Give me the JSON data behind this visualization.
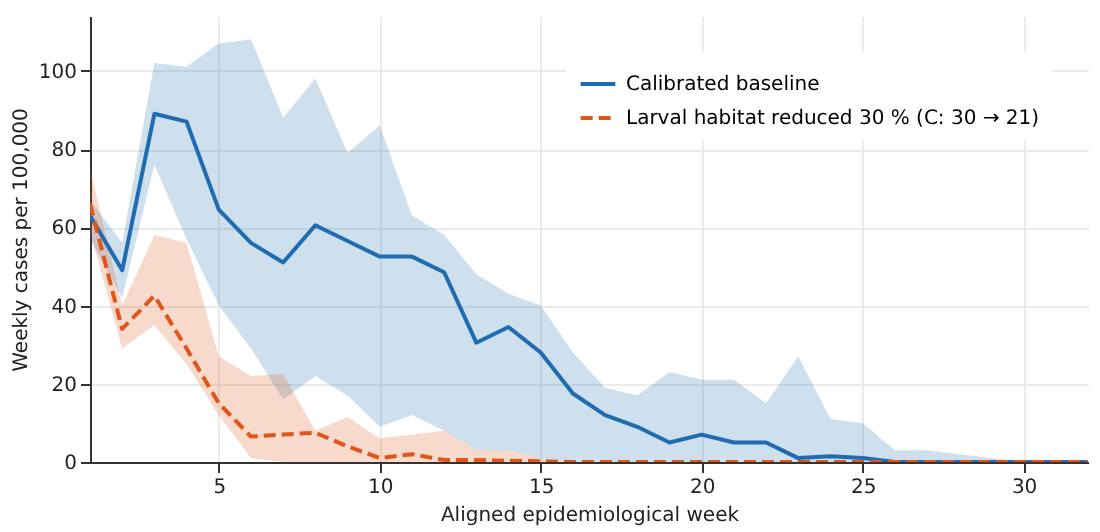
{
  "chart_data": {
    "type": "line",
    "xlabel": "Aligned epidemiological week",
    "ylabel": "Weekly cases per 100,000",
    "x": [
      1,
      2,
      3,
      4,
      5,
      6,
      7,
      8,
      9,
      10,
      11,
      12,
      13,
      14,
      15,
      16,
      17,
      18,
      19,
      20,
      21,
      22,
      23,
      24,
      25,
      26,
      27,
      28,
      29,
      30,
      31,
      32
    ],
    "series": [
      {
        "name": "Calibrated baseline",
        "color": "#1f6db0",
        "line_style": "solid",
        "values": [
          63,
          49,
          89,
          87,
          64.5,
          56,
          51,
          60.5,
          56.5,
          52.5,
          52.5,
          48.5,
          30.5,
          34.5,
          28,
          17.5,
          12,
          9,
          5,
          7,
          5,
          5,
          1,
          1.5,
          1,
          0,
          0,
          0,
          0,
          0,
          0,
          0
        ],
        "lower": [
          57,
          42,
          76,
          57,
          40,
          29,
          16,
          22,
          17,
          9,
          12,
          8,
          3,
          3,
          1,
          0,
          0,
          0,
          0,
          0,
          0,
          0,
          0,
          0,
          0,
          0,
          0,
          0,
          0,
          0,
          0,
          0
        ],
        "upper": [
          67,
          56,
          102,
          101,
          107,
          108,
          88,
          98,
          79,
          86,
          63,
          58,
          48,
          43,
          40,
          28,
          19,
          17,
          23,
          21,
          21,
          15,
          27,
          11,
          10,
          3,
          3,
          2,
          1,
          0,
          0,
          0
        ]
      },
      {
        "name": "Larval habitat reduced 30 % (C: 30 → 21)",
        "color": "#e0561a",
        "line_style": "dashed",
        "values": [
          66,
          34,
          42.5,
          29,
          15,
          6.5,
          7,
          7.5,
          4,
          1,
          2,
          0.5,
          0.5,
          0.3,
          0.2,
          0,
          0,
          0,
          0,
          0,
          0,
          0,
          0,
          0,
          0,
          0,
          0,
          0,
          0,
          0,
          0,
          0
        ],
        "lower": [
          59,
          29,
          35,
          25,
          12,
          1,
          0,
          0,
          0,
          0,
          0,
          0,
          0,
          0,
          0,
          0,
          0,
          0,
          0,
          0,
          0,
          0,
          0,
          0,
          0,
          0,
          0,
          0,
          0,
          0,
          0,
          0
        ],
        "upper": [
          75,
          40,
          58,
          56,
          27,
          22,
          22.5,
          8,
          11.5,
          6,
          7,
          8,
          3,
          3,
          1,
          0,
          0,
          0,
          0,
          0,
          0,
          0,
          0,
          0,
          0,
          0,
          0,
          0,
          0,
          0,
          0,
          0
        ]
      }
    ],
    "xlim": [
      1,
      32
    ],
    "xticks": [
      5,
      10,
      15,
      20,
      25,
      30
    ],
    "ylim": [
      0,
      114
    ],
    "yticks": [
      0,
      20,
      40,
      60,
      80,
      100
    ],
    "grid": true,
    "legend": "top right"
  }
}
